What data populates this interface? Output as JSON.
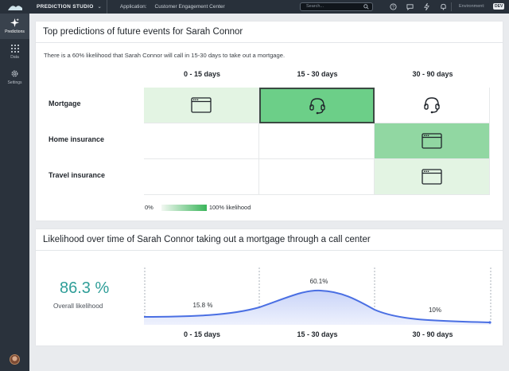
{
  "topbar": {
    "brand": "PREDICTION STUDIO",
    "app_label": "Application:",
    "app_name": "Customer Engagement Center",
    "search_placeholder": "Search...",
    "env_label": "Environment:",
    "env_value": "DEV"
  },
  "sidebar": {
    "items": [
      {
        "label": "Predictions",
        "icon": "sparkle-icon",
        "active": true
      },
      {
        "label": "Data",
        "icon": "grid-icon",
        "active": false
      },
      {
        "label": "Settings",
        "icon": "gear-icon",
        "active": false
      }
    ]
  },
  "predictions": {
    "title": "Top predictions of future events for Sarah Connor",
    "description": "There is a 60% likelihood that Sarah Connor will call in 15-30 days to take out a mortgage.",
    "columns": [
      "0 - 15 days",
      "15 - 30 days",
      "30 - 90 days"
    ],
    "rows": [
      {
        "label": "Mortgage",
        "cells": [
          {
            "channel": "web",
            "icon": "browser-window-icon",
            "shade": "light"
          },
          {
            "channel": "call",
            "icon": "headset-icon",
            "shade": "strong",
            "selected": true
          },
          {
            "channel": "call",
            "icon": "headset-icon",
            "shade": "none"
          }
        ]
      },
      {
        "label": "Home insurance",
        "cells": [
          {
            "channel": "",
            "icon": "",
            "shade": "none"
          },
          {
            "channel": "",
            "icon": "",
            "shade": "none"
          },
          {
            "channel": "web",
            "icon": "browser-window-icon",
            "shade": "medium"
          }
        ]
      },
      {
        "label": "Travel insurance",
        "cells": [
          {
            "channel": "",
            "icon": "",
            "shade": "none"
          },
          {
            "channel": "",
            "icon": "",
            "shade": "none"
          },
          {
            "channel": "web",
            "icon": "browser-window-icon",
            "shade": "light"
          }
        ]
      }
    ],
    "legend": {
      "min": "0%",
      "max": "100% likelihood"
    },
    "colors": {
      "light": "#e3f4e3",
      "medium": "#91d7a2",
      "strong": "#6ccf88",
      "accent": "#3ab55a"
    }
  },
  "likelihood": {
    "title": "Likelihood over time of Sarah Connor taking out a mortgage through a call center",
    "overall_value": "86.3 %",
    "overall_label": "Overall likelihood",
    "periods": [
      "0 - 15 days",
      "15 - 30 days",
      "30 - 90 days"
    ],
    "point_labels": [
      "15.8 %",
      "60.1%",
      "10%"
    ],
    "line_color": "#4a6fe3",
    "value_color": "#2f9e98"
  }
}
